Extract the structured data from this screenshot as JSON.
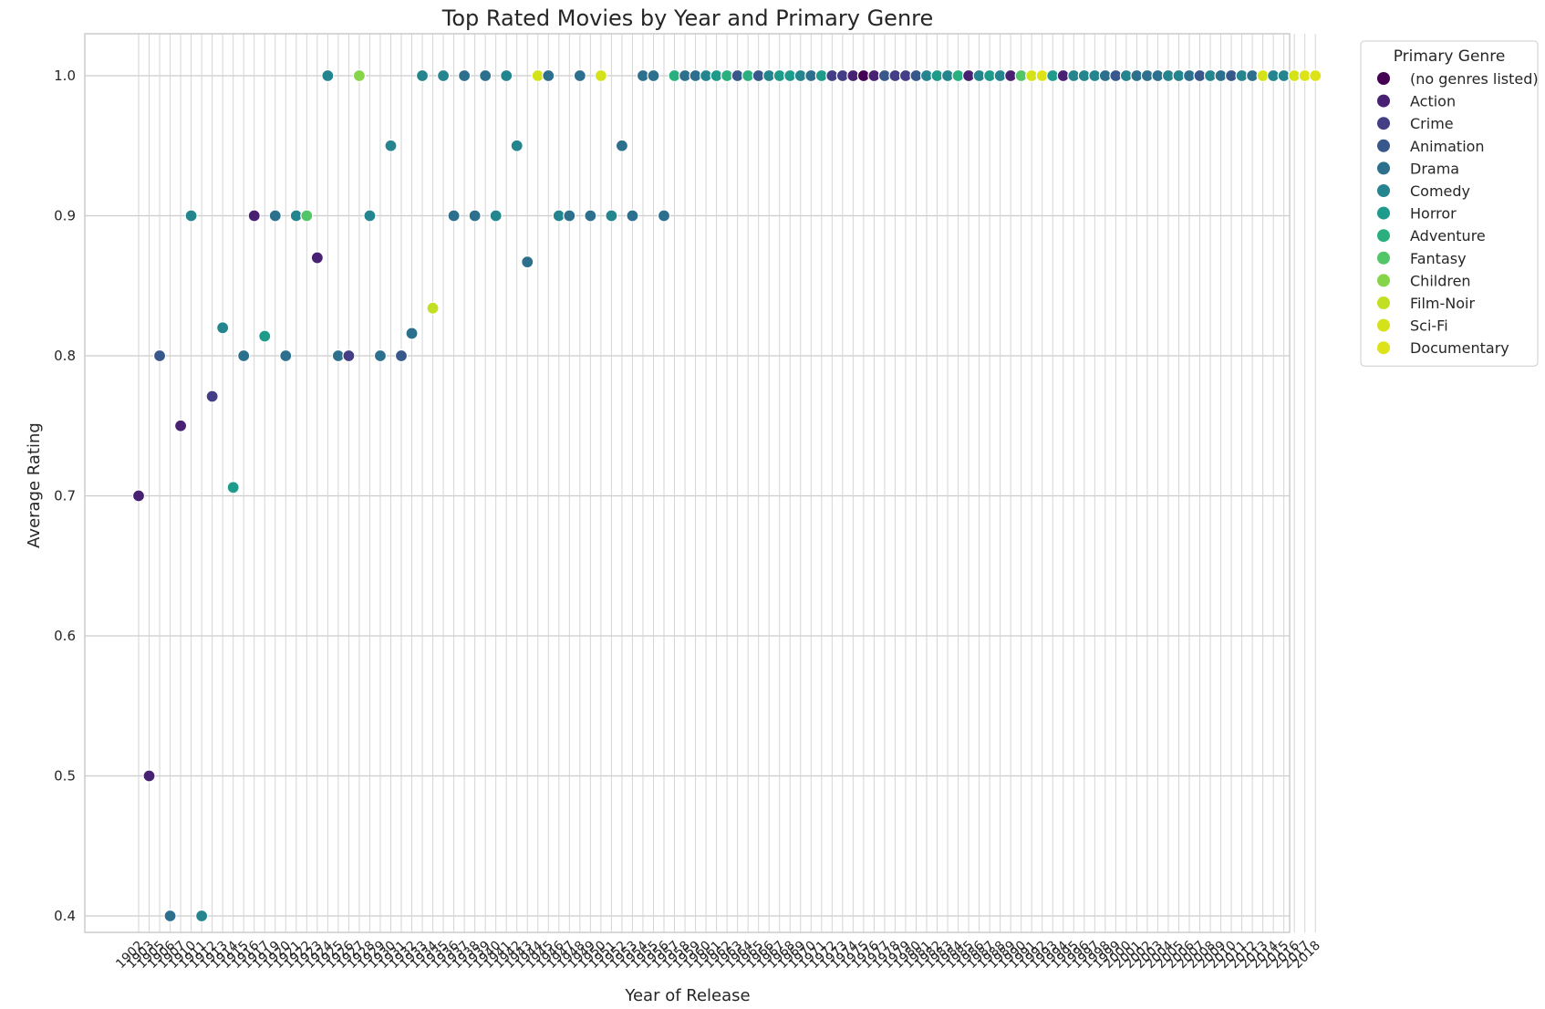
{
  "chart_data": {
    "type": "scatter",
    "title": "Top Rated Movies by Year and Primary Genre",
    "xlabel": "Year of Release",
    "ylabel": "Average Rating",
    "ylim": [
      0.37,
      1.03
    ],
    "yticks": [
      "0.4",
      "0.5",
      "0.6",
      "0.7",
      "0.8",
      "0.9",
      "1.0"
    ],
    "grid": true,
    "legend": {
      "title": "Primary Genre",
      "placement": "outside-top-right"
    },
    "genres": [
      {
        "name": "(no genres listed)",
        "color": "#440154"
      },
      {
        "name": "Action",
        "color": "#482173"
      },
      {
        "name": "Crime",
        "color": "#433e85"
      },
      {
        "name": "Animation",
        "color": "#38588c"
      },
      {
        "name": "Drama",
        "color": "#2d708e"
      },
      {
        "name": "Comedy",
        "color": "#25858e"
      },
      {
        "name": "Horror",
        "color": "#1e9b8a"
      },
      {
        "name": "Adventure",
        "color": "#2ab07f"
      },
      {
        "name": "Fantasy",
        "color": "#52c569"
      },
      {
        "name": "Children",
        "color": "#86d549"
      },
      {
        "name": "Film-Noir",
        "color": "#c2df23"
      },
      {
        "name": "Sci-Fi",
        "color": "#d4e21a"
      },
      {
        "name": "Documentary",
        "color": "#dde318"
      }
    ],
    "years": [
      "1902",
      "1903",
      "1905",
      "1906",
      "1907",
      "1910",
      "1911",
      "1912",
      "1913",
      "1914",
      "1915",
      "1916",
      "1917",
      "1919",
      "1920",
      "1921",
      "1922",
      "1923",
      "1924",
      "1925",
      "1926",
      "1927",
      "1928",
      "1929",
      "1930",
      "1931",
      "1932",
      "1933",
      "1934",
      "1935",
      "1936",
      "1937",
      "1938",
      "1939",
      "1940",
      "1941",
      "1942",
      "1943",
      "1944",
      "1945",
      "1946",
      "1947",
      "1948",
      "1949",
      "1950",
      "1951",
      "1952",
      "1953",
      "1954",
      "1955",
      "1956",
      "1957",
      "1958",
      "1959",
      "1960",
      "1961",
      "1962",
      "1963",
      "1964",
      "1965",
      "1966",
      "1967",
      "1968",
      "1969",
      "1970",
      "1971",
      "1972",
      "1973",
      "1974",
      "1975",
      "1976",
      "1977",
      "1978",
      "1979",
      "1980",
      "1981",
      "1982",
      "1983",
      "1984",
      "1985",
      "1986",
      "1987",
      "1988",
      "1989",
      "1990",
      "1991",
      "1992",
      "1993",
      "1994",
      "1995",
      "1996",
      "1997",
      "1998",
      "1999",
      "2000",
      "2001",
      "2002",
      "2003",
      "2004",
      "2005",
      "2006",
      "2007",
      "2008",
      "2009",
      "2010",
      "2011",
      "2012",
      "2013",
      "2014",
      "2015",
      "2016",
      "2017",
      "2018"
    ],
    "points": [
      {
        "x": "1902",
        "y": 0.7,
        "genre": "Action"
      },
      {
        "x": "1903",
        "y": 0.5,
        "genre": "Action"
      },
      {
        "x": "1905",
        "y": 0.8,
        "genre": "Animation"
      },
      {
        "x": "1906",
        "y": 0.4,
        "genre": "Drama"
      },
      {
        "x": "1907",
        "y": 0.75,
        "genre": "Action"
      },
      {
        "x": "1910",
        "y": 0.9,
        "genre": "Comedy"
      },
      {
        "x": "1911",
        "y": 0.4,
        "genre": "Comedy"
      },
      {
        "x": "1912",
        "y": 0.771,
        "genre": "Crime"
      },
      {
        "x": "1913",
        "y": 0.82,
        "genre": "Comedy"
      },
      {
        "x": "1914",
        "y": 0.706,
        "genre": "Horror"
      },
      {
        "x": "1915",
        "y": 0.8,
        "genre": "Drama"
      },
      {
        "x": "1916",
        "y": 0.9,
        "genre": "Action"
      },
      {
        "x": "1917",
        "y": 0.814,
        "genre": "Horror"
      },
      {
        "x": "1919",
        "y": 0.9,
        "genre": "Drama"
      },
      {
        "x": "1920",
        "y": 0.8,
        "genre": "Drama"
      },
      {
        "x": "1921",
        "y": 0.9,
        "genre": "Comedy"
      },
      {
        "x": "1922",
        "y": 0.9,
        "genre": "Fantasy"
      },
      {
        "x": "1923",
        "y": 0.87,
        "genre": "Action"
      },
      {
        "x": "1924",
        "y": 1.0,
        "genre": "Comedy"
      },
      {
        "x": "1925",
        "y": 0.8,
        "genre": "Drama"
      },
      {
        "x": "1926",
        "y": 0.8,
        "genre": "Crime"
      },
      {
        "x": "1927",
        "y": 1.0,
        "genre": "Children"
      },
      {
        "x": "1928",
        "y": 0.9,
        "genre": "Comedy"
      },
      {
        "x": "1929",
        "y": 0.8,
        "genre": "Drama"
      },
      {
        "x": "1930",
        "y": 0.95,
        "genre": "Comedy"
      },
      {
        "x": "1931",
        "y": 0.8,
        "genre": "Animation"
      },
      {
        "x": "1932",
        "y": 0.816,
        "genre": "Drama"
      },
      {
        "x": "1933",
        "y": 1.0,
        "genre": "Comedy"
      },
      {
        "x": "1934",
        "y": 0.834,
        "genre": "Film-Noir"
      },
      {
        "x": "1935",
        "y": 1.0,
        "genre": "Comedy"
      },
      {
        "x": "1936",
        "y": 0.9,
        "genre": "Drama"
      },
      {
        "x": "1937",
        "y": 1.0,
        "genre": "Drama"
      },
      {
        "x": "1938",
        "y": 0.9,
        "genre": "Drama"
      },
      {
        "x": "1939",
        "y": 1.0,
        "genre": "Drama"
      },
      {
        "x": "1940",
        "y": 0.9,
        "genre": "Comedy"
      },
      {
        "x": "1941",
        "y": 1.0,
        "genre": "Comedy"
      },
      {
        "x": "1942",
        "y": 0.95,
        "genre": "Comedy"
      },
      {
        "x": "1943",
        "y": 0.867,
        "genre": "Drama"
      },
      {
        "x": "1944",
        "y": 1.0,
        "genre": "Sci-Fi"
      },
      {
        "x": "1945",
        "y": 1.0,
        "genre": "Drama"
      },
      {
        "x": "1946",
        "y": 0.9,
        "genre": "Comedy"
      },
      {
        "x": "1947",
        "y": 0.9,
        "genre": "Drama"
      },
      {
        "x": "1948",
        "y": 1.0,
        "genre": "Drama"
      },
      {
        "x": "1949",
        "y": 0.9,
        "genre": "Drama"
      },
      {
        "x": "1950",
        "y": 1.0,
        "genre": "Sci-Fi"
      },
      {
        "x": "1951",
        "y": 0.9,
        "genre": "Comedy"
      },
      {
        "x": "1952",
        "y": 0.95,
        "genre": "Drama"
      },
      {
        "x": "1953",
        "y": 0.9,
        "genre": "Drama"
      },
      {
        "x": "1954",
        "y": 1.0,
        "genre": "Drama"
      },
      {
        "x": "1955",
        "y": 1.0,
        "genre": "Drama"
      },
      {
        "x": "1956",
        "y": 0.9,
        "genre": "Drama"
      },
      {
        "x": "1957",
        "y": 1.0,
        "genre": "Adventure"
      },
      {
        "x": "1958",
        "y": 1.0,
        "genre": "Drama"
      },
      {
        "x": "1959",
        "y": 1.0,
        "genre": "Drama"
      },
      {
        "x": "1960",
        "y": 1.0,
        "genre": "Comedy"
      },
      {
        "x": "1961",
        "y": 1.0,
        "genre": "Horror"
      },
      {
        "x": "1962",
        "y": 1.0,
        "genre": "Adventure"
      },
      {
        "x": "1963",
        "y": 1.0,
        "genre": "Animation"
      },
      {
        "x": "1964",
        "y": 1.0,
        "genre": "Adventure"
      },
      {
        "x": "1965",
        "y": 1.0,
        "genre": "Animation"
      },
      {
        "x": "1966",
        "y": 1.0,
        "genre": "Comedy"
      },
      {
        "x": "1967",
        "y": 1.0,
        "genre": "Horror"
      },
      {
        "x": "1968",
        "y": 1.0,
        "genre": "Horror"
      },
      {
        "x": "1969",
        "y": 1.0,
        "genre": "Comedy"
      },
      {
        "x": "1970",
        "y": 1.0,
        "genre": "Drama"
      },
      {
        "x": "1971",
        "y": 1.0,
        "genre": "Horror"
      },
      {
        "x": "1972",
        "y": 1.0,
        "genre": "Crime"
      },
      {
        "x": "1973",
        "y": 1.0,
        "genre": "Crime"
      },
      {
        "x": "1974",
        "y": 1.0,
        "genre": "Action"
      },
      {
        "x": "1975",
        "y": 1.0,
        "genre": "(no genres listed)"
      },
      {
        "x": "1976",
        "y": 1.0,
        "genre": "Action"
      },
      {
        "x": "1977",
        "y": 1.0,
        "genre": "Animation"
      },
      {
        "x": "1978",
        "y": 1.0,
        "genre": "Crime"
      },
      {
        "x": "1979",
        "y": 1.0,
        "genre": "Crime"
      },
      {
        "x": "1980",
        "y": 1.0,
        "genre": "Animation"
      },
      {
        "x": "1981",
        "y": 1.0,
        "genre": "Comedy"
      },
      {
        "x": "1982",
        "y": 1.0,
        "genre": "Horror"
      },
      {
        "x": "1983",
        "y": 1.0,
        "genre": "Comedy"
      },
      {
        "x": "1984",
        "y": 1.0,
        "genre": "Adventure"
      },
      {
        "x": "1985",
        "y": 1.0,
        "genre": "Action"
      },
      {
        "x": "1986",
        "y": 1.0,
        "genre": "Comedy"
      },
      {
        "x": "1987",
        "y": 1.0,
        "genre": "Horror"
      },
      {
        "x": "1988",
        "y": 1.0,
        "genre": "Comedy"
      },
      {
        "x": "1989",
        "y": 1.0,
        "genre": "Action"
      },
      {
        "x": "1990",
        "y": 1.0,
        "genre": "Fantasy"
      },
      {
        "x": "1991",
        "y": 1.0,
        "genre": "Sci-Fi"
      },
      {
        "x": "1992",
        "y": 1.0,
        "genre": "Documentary"
      },
      {
        "x": "1993",
        "y": 1.0,
        "genre": "Horror"
      },
      {
        "x": "1994",
        "y": 1.0,
        "genre": "Action"
      },
      {
        "x": "1995",
        "y": 1.0,
        "genre": "Comedy"
      },
      {
        "x": "1996",
        "y": 1.0,
        "genre": "Comedy"
      },
      {
        "x": "1997",
        "y": 1.0,
        "genre": "Comedy"
      },
      {
        "x": "1998",
        "y": 1.0,
        "genre": "Drama"
      },
      {
        "x": "1999",
        "y": 1.0,
        "genre": "Animation"
      },
      {
        "x": "2000",
        "y": 1.0,
        "genre": "Comedy"
      },
      {
        "x": "2001",
        "y": 1.0,
        "genre": "Drama"
      },
      {
        "x": "2002",
        "y": 1.0,
        "genre": "Drama"
      },
      {
        "x": "2003",
        "y": 1.0,
        "genre": "Drama"
      },
      {
        "x": "2004",
        "y": 1.0,
        "genre": "Comedy"
      },
      {
        "x": "2005",
        "y": 1.0,
        "genre": "Comedy"
      },
      {
        "x": "2006",
        "y": 1.0,
        "genre": "Drama"
      },
      {
        "x": "2007",
        "y": 1.0,
        "genre": "Animation"
      },
      {
        "x": "2008",
        "y": 1.0,
        "genre": "Comedy"
      },
      {
        "x": "2009",
        "y": 1.0,
        "genre": "Drama"
      },
      {
        "x": "2010",
        "y": 1.0,
        "genre": "Animation"
      },
      {
        "x": "2011",
        "y": 1.0,
        "genre": "Comedy"
      },
      {
        "x": "2012",
        "y": 1.0,
        "genre": "Drama"
      },
      {
        "x": "2013",
        "y": 1.0,
        "genre": "Sci-Fi"
      },
      {
        "x": "2014",
        "y": 1.0,
        "genre": "Comedy"
      },
      {
        "x": "2015",
        "y": 1.0,
        "genre": "Comedy"
      },
      {
        "x": "2016",
        "y": 1.0,
        "genre": "Sci-Fi"
      },
      {
        "x": "2017",
        "y": 1.0,
        "genre": "Documentary"
      },
      {
        "x": "2018",
        "y": 1.0,
        "genre": "Documentary"
      }
    ]
  }
}
